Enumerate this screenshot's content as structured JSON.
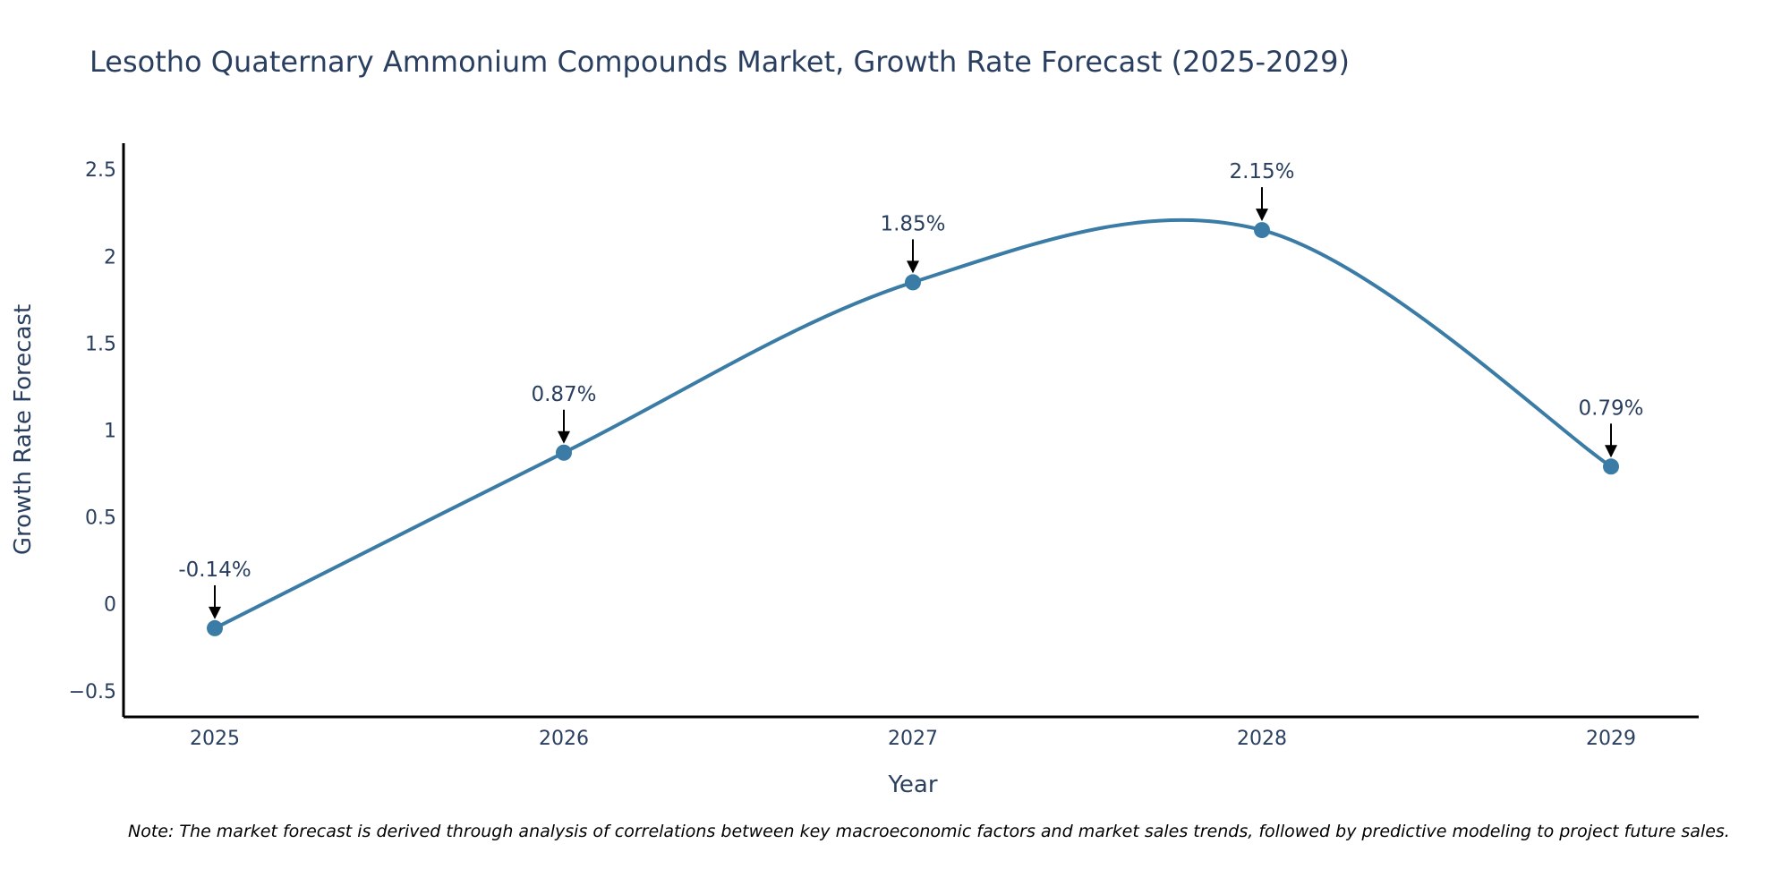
{
  "chart_data": {
    "type": "line",
    "title": "Lesotho Quaternary Ammonium Compounds Market, Growth Rate Forecast (2025-2029)",
    "xlabel": "Year",
    "ylabel": "Growth Rate Forecast",
    "categories": [
      "2025",
      "2026",
      "2027",
      "2028",
      "2029"
    ],
    "values": [
      -0.14,
      0.87,
      1.85,
      2.15,
      0.79
    ],
    "labels": [
      "-0.14%",
      "0.87%",
      "1.85%",
      "2.15%",
      "0.79%"
    ],
    "yticks": [
      -0.5,
      0,
      0.5,
      1,
      1.5,
      2,
      2.5
    ],
    "ytick_labels": [
      "−0.5",
      "0",
      "0.5",
      "1",
      "1.5",
      "2",
      "2.5"
    ],
    "ylim": [
      -0.65,
      2.65
    ],
    "line_color": "#3a7ca5",
    "marker_color": "#3a7ca5",
    "grid": false,
    "smoothing": "spline"
  },
  "note": "Note: The market forecast is derived through analysis of correlations between key macroeconomic factors and market sales trends, followed by predictive modeling to project future sales."
}
